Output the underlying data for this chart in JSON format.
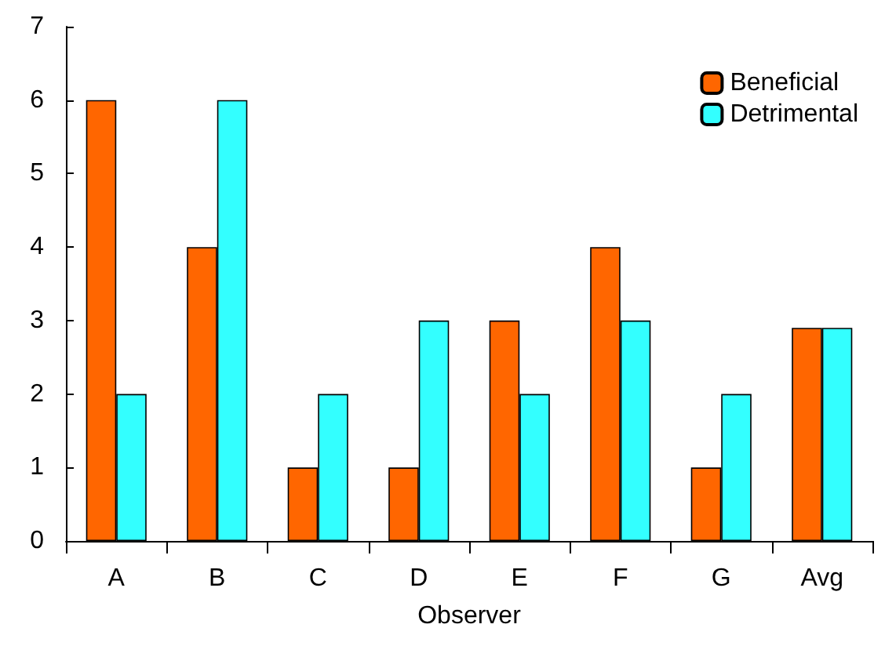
{
  "chart_data": {
    "type": "bar",
    "xlabel": "Observer",
    "categories": [
      "A",
      "B",
      "C",
      "D",
      "E",
      "F",
      "G",
      "Avg"
    ],
    "series": [
      {
        "name": "Beneficial",
        "color": "#ff6600",
        "values": [
          6,
          4,
          1,
          1,
          3,
          4,
          1,
          2.9
        ]
      },
      {
        "name": "Detrimental",
        "color": "#33ffff",
        "values": [
          2,
          6,
          2,
          3,
          2,
          3,
          2,
          2.9
        ]
      }
    ],
    "ylim": [
      0,
      7
    ],
    "yticks": [
      0,
      1,
      2,
      3,
      4,
      5,
      6,
      7
    ],
    "grid": false,
    "legend": "top right"
  }
}
